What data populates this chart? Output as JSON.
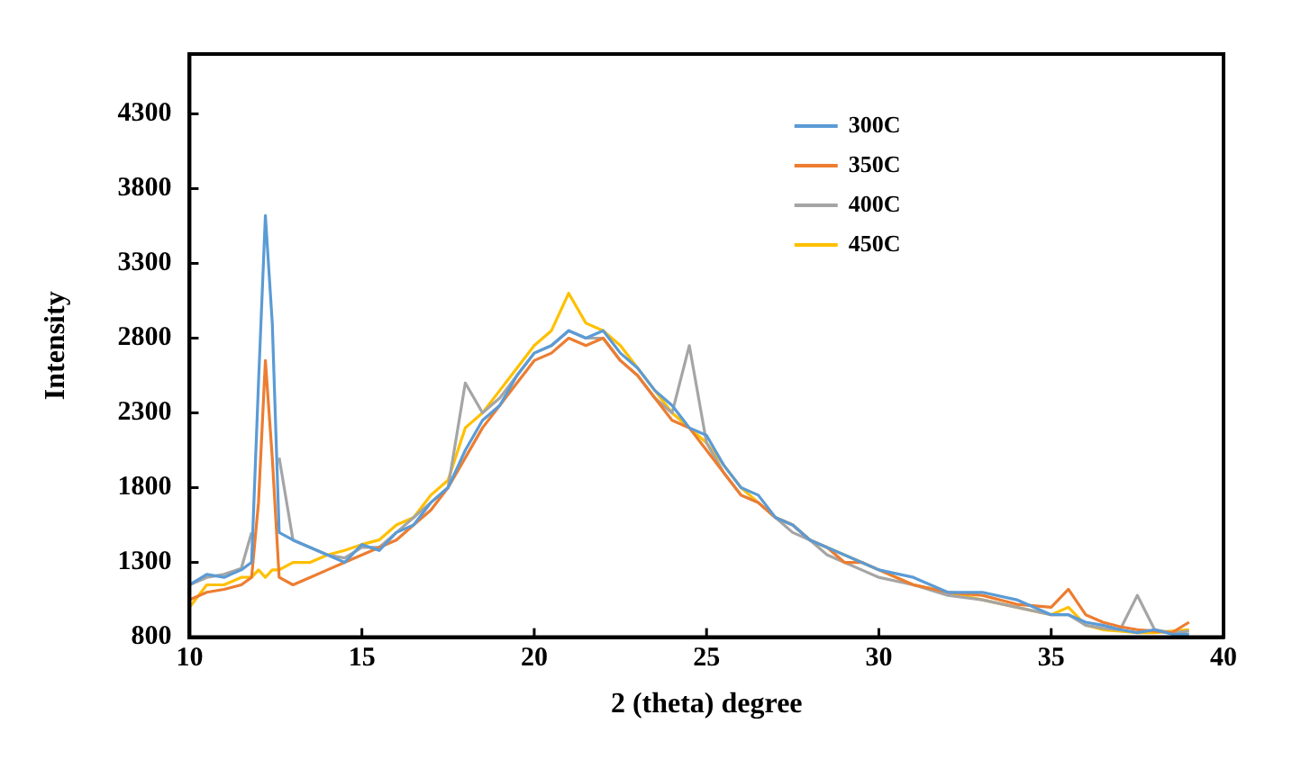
{
  "chart_data": {
    "type": "line",
    "xlabel": "2 (theta) degree",
    "ylabel": "Intensity",
    "x": [
      10,
      10.5,
      11,
      11.5,
      11.8,
      12,
      12.2,
      12.4,
      12.6,
      13,
      13.5,
      14,
      14.5,
      15,
      15.5,
      16,
      16.5,
      17,
      17.5,
      18,
      18.5,
      19,
      19.5,
      20,
      20.5,
      21,
      21.5,
      22,
      22.5,
      23,
      23.5,
      24,
      24.5,
      25,
      25.5,
      26,
      26.5,
      27,
      27.5,
      28,
      28.5,
      29,
      29.5,
      30,
      31,
      32,
      33,
      34,
      35,
      35.5,
      36,
      36.5,
      37,
      37.5,
      38,
      38.5,
      39
    ],
    "series": [
      {
        "name": "300C",
        "color": "#5b9bd5",
        "values": [
          1150,
          1220,
          1200,
          1250,
          1300,
          2500,
          3620,
          2900,
          1500,
          1450,
          1400,
          1350,
          1300,
          1420,
          1380,
          1500,
          1550,
          1700,
          1800,
          2050,
          2250,
          2350,
          2550,
          2700,
          2750,
          2850,
          2800,
          2850,
          2700,
          2600,
          2450,
          2350,
          2200,
          2150,
          1950,
          1800,
          1750,
          1600,
          1550,
          1450,
          1400,
          1350,
          1300,
          1250,
          1200,
          1100,
          1100,
          1050,
          950,
          950,
          900,
          880,
          850,
          830,
          850,
          820,
          820
        ]
      },
      {
        "name": "350C",
        "color": "#ed7d31",
        "values": [
          1050,
          1100,
          1120,
          1150,
          1200,
          1700,
          2650,
          2000,
          1200,
          1150,
          1200,
          1250,
          1300,
          1350,
          1400,
          1450,
          1550,
          1650,
          1800,
          2000,
          2200,
          2350,
          2500,
          2650,
          2700,
          2800,
          2750,
          2800,
          2650,
          2550,
          2400,
          2250,
          2200,
          2050,
          1900,
          1750,
          1700,
          1600,
          1550,
          1450,
          1400,
          1300,
          1300,
          1250,
          1150,
          1100,
          1080,
          1020,
          1000,
          1120,
          950,
          900,
          870,
          850,
          840,
          830,
          900
        ]
      },
      {
        "name": "400C",
        "color": "#a5a5a5",
        "values": [
          1150,
          1200,
          1220,
          1260,
          1500,
          null,
          null,
          null,
          2000,
          1450,
          1400,
          1350,
          1330,
          1400,
          1400,
          1500,
          1600,
          1700,
          1800,
          2500,
          2300,
          2400,
          2550,
          2700,
          2750,
          2850,
          2800,
          2800,
          2650,
          2550,
          2400,
          2300,
          2750,
          2100,
          1900,
          1750,
          1700,
          1600,
          1500,
          1450,
          1350,
          1300,
          1250,
          1200,
          1150,
          1080,
          1050,
          1000,
          950,
          950,
          880,
          860,
          850,
          1080,
          850,
          830,
          840
        ]
      },
      {
        "name": "450C",
        "color": "#ffc000",
        "values": [
          1000,
          1150,
          1150,
          1200,
          1200,
          1250,
          1200,
          1250,
          1250,
          1300,
          1300,
          1350,
          1380,
          1420,
          1450,
          1550,
          1600,
          1750,
          1850,
          2200,
          2300,
          2450,
          2600,
          2750,
          2850,
          3100,
          2900,
          2850,
          2750,
          2600,
          2450,
          2300,
          2200,
          2100,
          1950,
          1800,
          1700,
          1600,
          1550,
          1450,
          1400,
          1350,
          1300,
          1250,
          1150,
          1100,
          1050,
          1000,
          950,
          1000,
          880,
          850,
          840,
          830,
          830,
          840,
          850
        ]
      }
    ],
    "xlim": [
      10,
      40
    ],
    "xticks": [
      10,
      15,
      20,
      25,
      30,
      35,
      40
    ],
    "ylim": [
      800,
      4700
    ],
    "yticks": [
      800,
      1300,
      1800,
      2300,
      2800,
      3300,
      3800,
      4300
    ],
    "grid": false,
    "legend": "top right",
    "marker": "none",
    "line_style": "solid"
  }
}
